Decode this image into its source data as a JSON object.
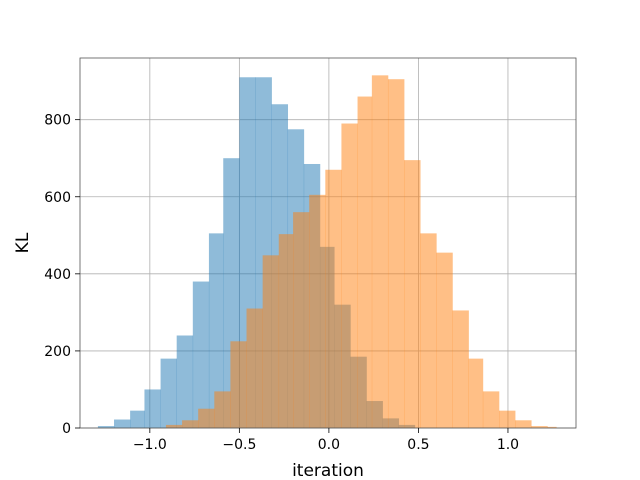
{
  "chart_data": {
    "type": "bar",
    "title": "",
    "xlabel": "iteration",
    "ylabel": "KL",
    "xlim": [
      -1.39,
      1.38
    ],
    "ylim": [
      0,
      960
    ],
    "xticks": [
      -1.0,
      -0.5,
      0.0,
      0.5,
      1.0
    ],
    "xtick_labels": [
      "−1.0",
      "−0.5",
      "0.0",
      "0.5",
      "1.0"
    ],
    "yticks": [
      0,
      200,
      400,
      600,
      800
    ],
    "ytick_labels": [
      "0",
      "200",
      "400",
      "600",
      "800"
    ],
    "grid": true,
    "legend": "none",
    "series": [
      {
        "color": "#1f77b4",
        "opacity": 0.5,
        "bin_edges": [
          -1.29,
          -1.2,
          -1.11,
          -1.03,
          -0.94,
          -0.85,
          -0.76,
          -0.67,
          -0.59,
          -0.5,
          -0.41,
          -0.32,
          -0.23,
          -0.14,
          -0.05,
          0.03,
          0.12,
          0.21,
          0.3,
          0.39,
          0.48
        ],
        "values": [
          5,
          22,
          45,
          100,
          180,
          240,
          380,
          505,
          700,
          910,
          910,
          840,
          775,
          685,
          470,
          320,
          185,
          70,
          25,
          8
        ]
      },
      {
        "color": "#ff7f0e",
        "opacity": 0.5,
        "bin_edges": [
          -0.91,
          -0.82,
          -0.73,
          -0.64,
          -0.55,
          -0.46,
          -0.37,
          -0.28,
          -0.2,
          -0.11,
          -0.02,
          0.07,
          0.16,
          0.24,
          0.33,
          0.42,
          0.51,
          0.6,
          0.69,
          0.78,
          0.86,
          0.95,
          1.04,
          1.13,
          1.22,
          1.27
        ],
        "values": [
          8,
          20,
          50,
          95,
          225,
          310,
          448,
          503,
          560,
          605,
          670,
          790,
          860,
          915,
          905,
          695,
          505,
          455,
          305,
          180,
          95,
          45,
          20,
          5,
          3
        ]
      }
    ]
  }
}
